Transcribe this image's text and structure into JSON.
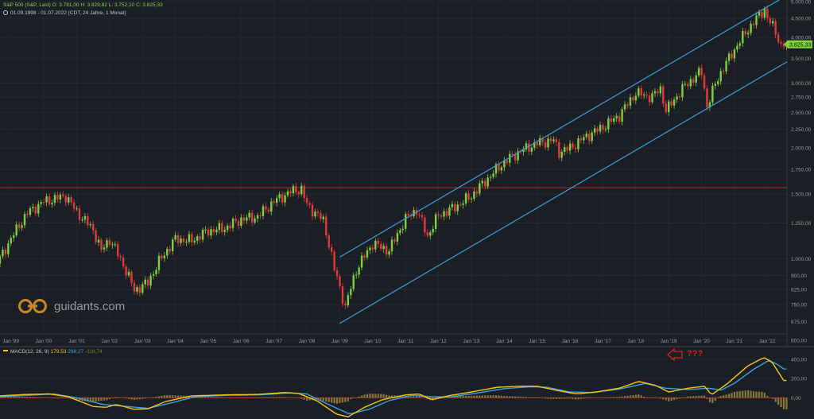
{
  "header": {
    "symbol_line": "S&P 500 (S&P, Last)  O: 3.781,00  H: 3.829,82  L: 3.752,10  C: 3.825,33",
    "range_line": "01.09.1998 - 01.07.2022    (CDT, 24 Jahre, 1 Monat)"
  },
  "brand": {
    "name": "guidants.com"
  },
  "annotation": {
    "text": "???",
    "color": "#e02020"
  },
  "last_price_label": "3.825,33",
  "colors": {
    "background": "#1b1e25",
    "up": "#7ed13f",
    "down": "#e23b3b",
    "channel": "#3aa3d8",
    "horizontal_line": "#b02b2b",
    "macd_line": "#f5c518",
    "signal_line": "#3aa3d8",
    "histogram": "#8a7a3a"
  },
  "chart_data": [
    {
      "type": "candlestick",
      "y_scale": "log",
      "ylim": [
        600,
        5000
      ],
      "xlim": [
        1998.67,
        2022.6
      ],
      "y_ticks": [
        {
          "value": 600,
          "label": "600,00"
        },
        {
          "value": 675,
          "label": "675,00"
        },
        {
          "value": 750,
          "label": "750,00"
        },
        {
          "value": 825,
          "label": "825,00"
        },
        {
          "value": 900,
          "label": "900,00"
        },
        {
          "value": 1000,
          "label": "1.000,00"
        },
        {
          "value": 1250,
          "label": "1.250,00"
        },
        {
          "value": 1500,
          "label": "1.500,00"
        },
        {
          "value": 1750,
          "label": "1.750,00"
        },
        {
          "value": 2000,
          "label": "2.000,00"
        },
        {
          "value": 2250,
          "label": "2.250,00"
        },
        {
          "value": 2500,
          "label": "2.500,00"
        },
        {
          "value": 2750,
          "label": "2.750,00"
        },
        {
          "value": 3000,
          "label": "3.000,00"
        },
        {
          "value": 3500,
          "label": "3.500,00"
        },
        {
          "value": 4000,
          "label": "4.000,00"
        },
        {
          "value": 4500,
          "label": "4.500,00"
        },
        {
          "value": 5000,
          "label": "5.000,00"
        }
      ],
      "x_ticks": [
        {
          "value": 1999,
          "label": "Jan '99"
        },
        {
          "value": 2000,
          "label": "Jan '00"
        },
        {
          "value": 2001,
          "label": "Jan '01"
        },
        {
          "value": 2002,
          "label": "Jan '02"
        },
        {
          "value": 2003,
          "label": "Jan '03"
        },
        {
          "value": 2004,
          "label": "Jan '04"
        },
        {
          "value": 2005,
          "label": "Jan '05"
        },
        {
          "value": 2006,
          "label": "Jan '06"
        },
        {
          "value": 2007,
          "label": "Jan '07"
        },
        {
          "value": 2008,
          "label": "Jan '08"
        },
        {
          "value": 2009,
          "label": "Jan '09"
        },
        {
          "value": 2010,
          "label": "Jan '10"
        },
        {
          "value": 2011,
          "label": "Jan '11"
        },
        {
          "value": 2012,
          "label": "Jan '12"
        },
        {
          "value": 2013,
          "label": "Jan '13"
        },
        {
          "value": 2014,
          "label": "Jan '14"
        },
        {
          "value": 2015,
          "label": "Jan '15"
        },
        {
          "value": 2016,
          "label": "Jan '16"
        },
        {
          "value": 2017,
          "label": "Jan '17"
        },
        {
          "value": 2018,
          "label": "Jan '18"
        },
        {
          "value": 2019,
          "label": "Jan '19"
        },
        {
          "value": 2020,
          "label": "Jan '20"
        },
        {
          "value": 2021,
          "label": "Jan '21"
        },
        {
          "value": 2022,
          "label": "Jan '22"
        }
      ],
      "last_close": 3825.33,
      "horizontal_line": 1560,
      "channel": {
        "upper": {
          "from": [
            2009.0,
            1010
          ],
          "to": [
            2022.6,
            5200
          ]
        },
        "lower": {
          "from": [
            2009.0,
            667
          ],
          "to": [
            2022.6,
            3430
          ]
        }
      },
      "close_anchors": [
        [
          1998.67,
          1000
        ],
        [
          1999.5,
          1330
        ],
        [
          2000.0,
          1430
        ],
        [
          2000.67,
          1480
        ],
        [
          2001.0,
          1340
        ],
        [
          2001.5,
          1200
        ],
        [
          2001.75,
          1050
        ],
        [
          2002.0,
          1130
        ],
        [
          2002.5,
          930
        ],
        [
          2002.75,
          820
        ],
        [
          2003.17,
          860
        ],
        [
          2003.5,
          980
        ],
        [
          2004.0,
          1130
        ],
        [
          2004.5,
          1120
        ],
        [
          2005.0,
          1190
        ],
        [
          2005.5,
          1210
        ],
        [
          2006.0,
          1280
        ],
        [
          2006.5,
          1300
        ],
        [
          2007.0,
          1430
        ],
        [
          2007.5,
          1520
        ],
        [
          2007.83,
          1550
        ],
        [
          2008.0,
          1400
        ],
        [
          2008.5,
          1270
        ],
        [
          2008.83,
          940
        ],
        [
          2009.17,
          735
        ],
        [
          2009.5,
          930
        ],
        [
          2010.0,
          1100
        ],
        [
          2010.5,
          1050
        ],
        [
          2011.0,
          1280
        ],
        [
          2011.33,
          1360
        ],
        [
          2011.67,
          1150
        ],
        [
          2012.0,
          1310
        ],
        [
          2012.5,
          1380
        ],
        [
          2013.0,
          1480
        ],
        [
          2013.5,
          1650
        ],
        [
          2014.0,
          1830
        ],
        [
          2014.5,
          1960
        ],
        [
          2015.0,
          2060
        ],
        [
          2015.5,
          2100
        ],
        [
          2015.67,
          1950
        ],
        [
          2016.0,
          2000
        ],
        [
          2016.5,
          2150
        ],
        [
          2017.0,
          2280
        ],
        [
          2017.5,
          2450
        ],
        [
          2018.0,
          2820
        ],
        [
          2018.5,
          2750
        ],
        [
          2018.75,
          2910
        ],
        [
          2018.92,
          2520
        ],
        [
          2019.5,
          2950
        ],
        [
          2020.0,
          3230
        ],
        [
          2020.17,
          2590
        ],
        [
          2020.5,
          3100
        ],
        [
          2021.0,
          3700
        ],
        [
          2021.5,
          4300
        ],
        [
          2021.92,
          4770
        ],
        [
          2022.0,
          4520
        ],
        [
          2022.25,
          4150
        ],
        [
          2022.42,
          3790
        ],
        [
          2022.5,
          3825.33
        ]
      ]
    },
    {
      "type": "macd",
      "legend": {
        "label": "MACD(12, 26, 9)",
        "macd": "179,53",
        "signal": "298,27",
        "hist": "-118,74"
      },
      "ylim": [
        -180,
        450
      ],
      "y_ticks": [
        {
          "value": 400,
          "label": "400,00"
        },
        {
          "value": 200,
          "label": "200,00"
        },
        {
          "value": 0,
          "label": "0,00"
        }
      ],
      "macd_anchors": [
        [
          1998.67,
          20
        ],
        [
          1999.5,
          35
        ],
        [
          2000.17,
          40
        ],
        [
          2000.75,
          10
        ],
        [
          2001.5,
          -90
        ],
        [
          2001.9,
          -100
        ],
        [
          2002.2,
          -70
        ],
        [
          2002.75,
          -120
        ],
        [
          2003.17,
          -115
        ],
        [
          2003.7,
          -40
        ],
        [
          2004.5,
          20
        ],
        [
          2005.5,
          30
        ],
        [
          2006.5,
          35
        ],
        [
          2007.33,
          55
        ],
        [
          2007.75,
          45
        ],
        [
          2008.3,
          -30
        ],
        [
          2008.9,
          -170
        ],
        [
          2009.25,
          -200
        ],
        [
          2009.75,
          -100
        ],
        [
          2010.3,
          -20
        ],
        [
          2011.0,
          30
        ],
        [
          2011.4,
          40
        ],
        [
          2011.8,
          -20
        ],
        [
          2012.3,
          20
        ],
        [
          2013.0,
          60
        ],
        [
          2013.8,
          110
        ],
        [
          2014.5,
          120
        ],
        [
          2015.0,
          120
        ],
        [
          2015.7,
          70
        ],
        [
          2016.2,
          40
        ],
        [
          2016.8,
          60
        ],
        [
          2017.5,
          100
        ],
        [
          2018.1,
          170
        ],
        [
          2018.6,
          130
        ],
        [
          2019.0,
          60
        ],
        [
          2019.6,
          100
        ],
        [
          2020.1,
          120
        ],
        [
          2020.3,
          30
        ],
        [
          2020.8,
          150
        ],
        [
          2021.4,
          330
        ],
        [
          2021.9,
          420
        ],
        [
          2022.15,
          370
        ],
        [
          2022.35,
          260
        ],
        [
          2022.5,
          180
        ]
      ],
      "signal_anchors": [
        [
          1998.67,
          10
        ],
        [
          1999.5,
          25
        ],
        [
          2000.3,
          40
        ],
        [
          2001.0,
          0
        ],
        [
          2001.8,
          -70
        ],
        [
          2002.5,
          -90
        ],
        [
          2003.17,
          -110
        ],
        [
          2003.8,
          -60
        ],
        [
          2004.6,
          10
        ],
        [
          2005.5,
          25
        ],
        [
          2006.5,
          30
        ],
        [
          2007.5,
          50
        ],
        [
          2008.0,
          40
        ],
        [
          2008.6,
          -60
        ],
        [
          2009.3,
          -170
        ],
        [
          2009.9,
          -120
        ],
        [
          2010.5,
          -30
        ],
        [
          2011.2,
          25
        ],
        [
          2011.8,
          10
        ],
        [
          2012.4,
          10
        ],
        [
          2013.2,
          50
        ],
        [
          2014.0,
          95
        ],
        [
          2014.8,
          115
        ],
        [
          2015.3,
          110
        ],
        [
          2016.0,
          60
        ],
        [
          2016.7,
          55
        ],
        [
          2017.5,
          90
        ],
        [
          2018.3,
          150
        ],
        [
          2018.9,
          100
        ],
        [
          2019.6,
          85
        ],
        [
          2020.2,
          100
        ],
        [
          2020.6,
          80
        ],
        [
          2021.0,
          150
        ],
        [
          2021.6,
          300
        ],
        [
          2022.05,
          390
        ],
        [
          2022.3,
          350
        ],
        [
          2022.5,
          300
        ]
      ]
    }
  ]
}
